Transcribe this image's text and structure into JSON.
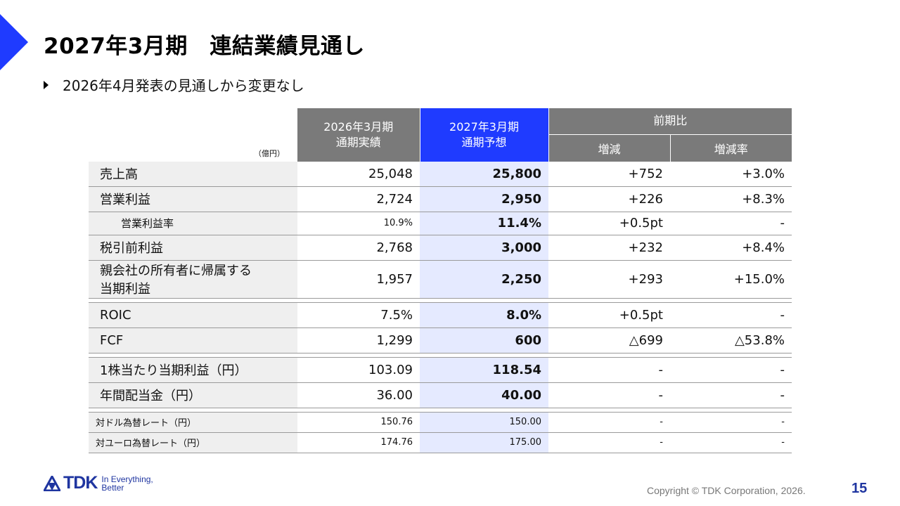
{
  "header": {
    "title": "2027年3月期　連結業績見通し"
  },
  "bullet": "2026年4月発表の見通しから変更なし",
  "table": {
    "unit": "（億円）",
    "col_actual": [
      "2026年3月期",
      "通期実績"
    ],
    "col_forecast": [
      "2027年3月期",
      "通期予想"
    ],
    "col_yoy": "前期比",
    "col_change": "増減",
    "col_change_rate": "増減率",
    "rows": [
      {
        "label": "売上高",
        "actual": "25,048",
        "forecast": "25,800",
        "change": "+752",
        "rate": "+3.0%"
      },
      {
        "label": "営業利益",
        "actual": "2,724",
        "forecast": "2,950",
        "change": "+226",
        "rate": "+8.3%"
      },
      {
        "label": "営業利益率",
        "actual": "10.9%",
        "forecast": "11.4%",
        "change": "+0.5pt",
        "rate": "-"
      },
      {
        "label": "税引前利益",
        "actual": "2,768",
        "forecast": "3,000",
        "change": "+232",
        "rate": "+8.4%"
      },
      {
        "label_line1": "親会社の所有者に帰属する",
        "label_line2": "当期利益",
        "actual": "1,957",
        "forecast": "2,250",
        "change": "+293",
        "rate": "+15.0%"
      },
      {
        "label": "ROIC",
        "actual": "7.5%",
        "forecast": "8.0%",
        "change": "+0.5pt",
        "rate": "-"
      },
      {
        "label": "FCF",
        "actual": "1,299",
        "forecast": "600",
        "change": "△699",
        "rate": "△53.8%"
      },
      {
        "label": "1株当たり当期利益（円）",
        "actual": "103.09",
        "forecast": "118.54",
        "change": "-",
        "rate": "-"
      },
      {
        "label": "年間配当金（円）",
        "actual": "36.00",
        "forecast": "40.00",
        "change": "-",
        "rate": "-"
      },
      {
        "label": "対ドル為替レート（円）",
        "actual": "150.76",
        "forecast": "150.00",
        "change": "-",
        "rate": "-"
      },
      {
        "label": "対ユーロ為替レート（円）",
        "actual": "174.76",
        "forecast": "175.00",
        "change": "-",
        "rate": "-"
      }
    ]
  },
  "footer": {
    "logo": "TDK",
    "tagline_line1": "In Everything,",
    "tagline_line2": "Better",
    "copyright": "Copyright  © TDK Corporation, 2026.",
    "page_number": "15"
  },
  "colors": {
    "accent": "#1f3bff",
    "header_gray": "#7a7a7a",
    "forecast_bg": "#e5eaff",
    "label_bg": "#efefef",
    "brand": "#1f35a0"
  }
}
